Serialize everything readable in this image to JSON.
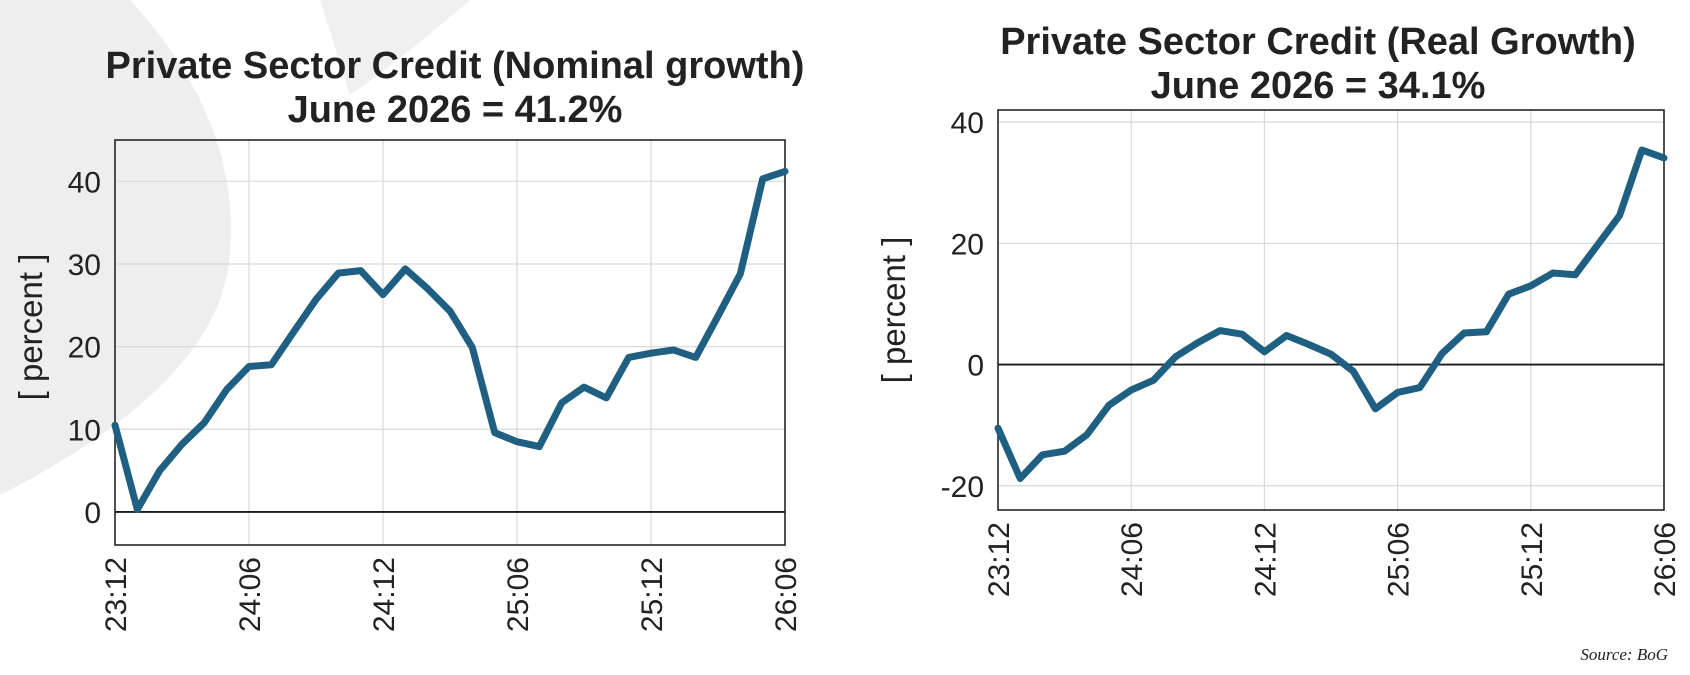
{
  "chart_data": [
    {
      "type": "line",
      "title": "Private Sector Credit (Nominal growth)",
      "subtitle": "June 2026 = 41.2%",
      "ylabel": "[ percent ]",
      "xlabel": "",
      "ylim": [
        -4,
        45
      ],
      "yticks": [
        0,
        10,
        20,
        30,
        40
      ],
      "xtick_labels": [
        "23:12",
        "24:06",
        "24:12",
        "25:06",
        "25:12",
        "26:06"
      ],
      "grid": true,
      "zero_line": true,
      "line_color": "#1f5f82",
      "series": [
        {
          "values": [
            10.5,
            0.3,
            5.0,
            8.2,
            10.8,
            14.8,
            17.6,
            17.8,
            21.8,
            25.7,
            28.9,
            29.2,
            26.3,
            29.4,
            27.0,
            24.3,
            19.9,
            9.6,
            8.5,
            7.9,
            13.2,
            15.1,
            13.8,
            18.7,
            19.2,
            19.6,
            18.7,
            23.7,
            28.8,
            40.3,
            41.2
          ]
        }
      ]
    },
    {
      "type": "line",
      "title": "Private Sector Credit (Real Growth)",
      "subtitle": "June 2026 = 34.1%",
      "ylabel": "[ percent ]",
      "xlabel": "",
      "ylim": [
        -24,
        42
      ],
      "yticks": [
        -20,
        0,
        20,
        40
      ],
      "xtick_labels": [
        "23:12",
        "24:06",
        "24:12",
        "25:06",
        "25:12",
        "26:06"
      ],
      "grid": true,
      "zero_line": true,
      "line_color": "#1f5f82",
      "series": [
        {
          "values": [
            -10.5,
            -18.8,
            -14.9,
            -14.3,
            -11.6,
            -6.7,
            -4.2,
            -2.6,
            1.3,
            3.6,
            5.6,
            5.0,
            2.1,
            4.8,
            3.3,
            1.7,
            -1.1,
            -7.3,
            -4.6,
            -3.8,
            1.8,
            5.2,
            5.4,
            11.6,
            13.0,
            15.1,
            14.8,
            19.7,
            24.6,
            35.4,
            34.1
          ]
        }
      ]
    }
  ],
  "source": "Source: BoG"
}
